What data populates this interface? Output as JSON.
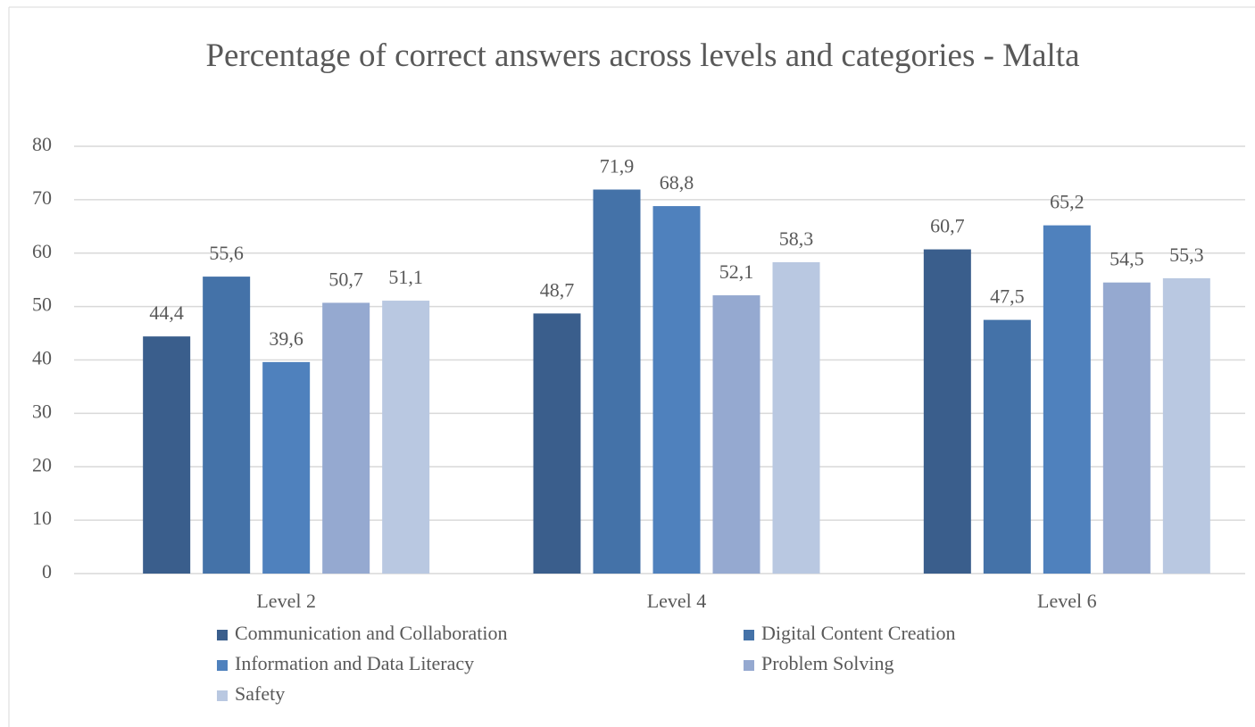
{
  "chart_data": {
    "type": "bar",
    "title": "Percentage of correct answers across levels and categories - Malta",
    "categories": [
      "Level 2",
      "Level 4",
      "Level 6"
    ],
    "series": [
      {
        "name": "Communication and Collaboration",
        "color": "#3a5e8c",
        "values": [
          44.4,
          48.7,
          60.7
        ],
        "value_labels": [
          "44,4",
          "48,7",
          "60,7"
        ]
      },
      {
        "name": "Digital Content Creation",
        "color": "#4472a8",
        "values": [
          55.6,
          71.9,
          47.5
        ],
        "value_labels": [
          "55,6",
          "71,9",
          "47,5"
        ]
      },
      {
        "name": "Information and Data Literacy",
        "color": "#4f81bd",
        "values": [
          39.6,
          68.8,
          65.2
        ],
        "value_labels": [
          "39,6",
          "68,8",
          "65,2"
        ]
      },
      {
        "name": "Problem Solving",
        "color": "#95a9d0",
        "values": [
          50.7,
          52.1,
          54.5
        ],
        "value_labels": [
          "50,7",
          "52,1",
          "54,5"
        ]
      },
      {
        "name": "Safety",
        "color": "#b9c8e1",
        "values": [
          51.1,
          58.3,
          55.3
        ],
        "value_labels": [
          "51,1",
          "58,3",
          "55,3"
        ]
      }
    ],
    "ylim": [
      0,
      80
    ],
    "yticks": [
      0,
      10,
      20,
      30,
      40,
      50,
      60,
      70,
      80
    ],
    "grid": true,
    "legend": "bottom"
  }
}
